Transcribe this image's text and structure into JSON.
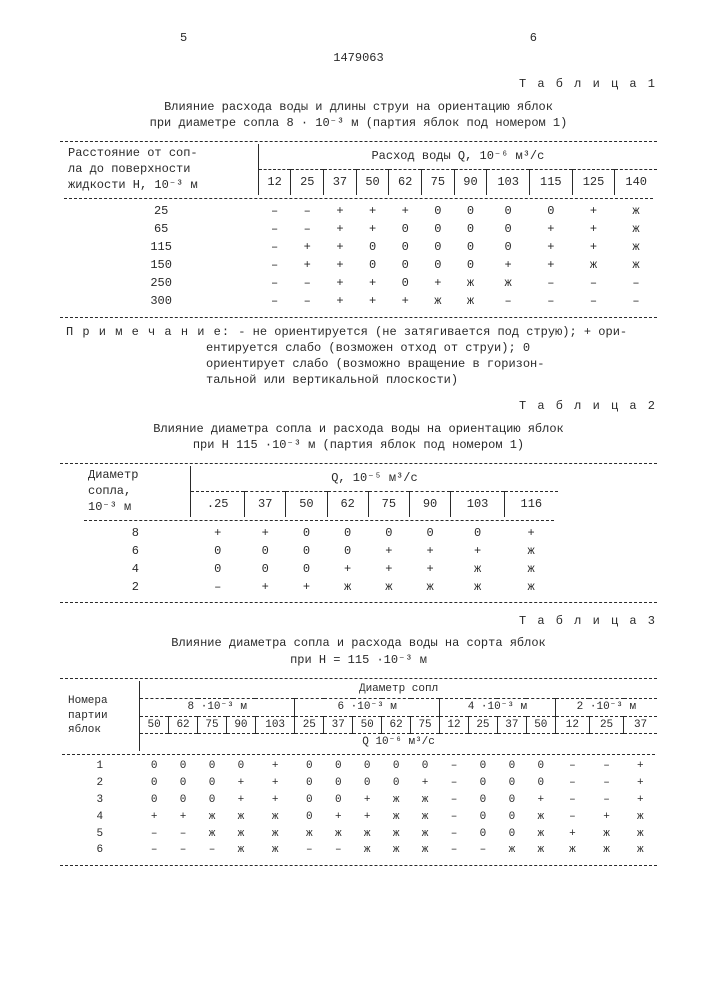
{
  "font_family": "Courier New",
  "text_color": "#2a2a2a",
  "background_color": "#ffffff",
  "page_num_left": "5",
  "page_num_right": "6",
  "doc_number": "1479063",
  "table1": {
    "label": "Т а б л и ц а  1",
    "caption_line1": "Влияние расхода воды и длины струи на ориентацию яблок",
    "caption_line2": "при диаметре сопла 8 · 10⁻³ м (партия яблок под номером 1)",
    "row_header_line1": "Расстояние от соп-",
    "row_header_line2": "ла до поверхности",
    "row_header_line3": "жидкости H, 10⁻³ м",
    "col_group_header": "Расход  воды Q,  10⁻⁶ м³/с",
    "cols": [
      "12",
      "25",
      "37",
      "50",
      "62",
      "75",
      "90",
      "103",
      "115",
      "125",
      "140"
    ],
    "rows": [
      {
        "h": "25",
        "v": [
          "–",
          "–",
          "+",
          "+",
          "+",
          "0",
          "0",
          "0",
          "0",
          "+",
          "ж"
        ]
      },
      {
        "h": "65",
        "v": [
          "–",
          "–",
          "+",
          "+",
          "0",
          "0",
          "0",
          "0",
          "+",
          "+",
          "ж"
        ]
      },
      {
        "h": "115",
        "v": [
          "–",
          "+",
          "+",
          "0",
          "0",
          "0",
          "0",
          "0",
          "+",
          "+",
          "ж"
        ]
      },
      {
        "h": "150",
        "v": [
          "–",
          "+",
          "+",
          "0",
          "0",
          "0",
          "0",
          "+",
          "+",
          "ж",
          "ж"
        ]
      },
      {
        "h": "250",
        "v": [
          "–",
          "–",
          "+",
          "+",
          "0",
          "+",
          "ж",
          "ж",
          "–",
          "–",
          "–"
        ]
      },
      {
        "h": "300",
        "v": [
          "–",
          "–",
          "+",
          "+",
          "+",
          "ж",
          "ж",
          "–",
          "–",
          "–",
          "–"
        ]
      }
    ]
  },
  "note_label": "П р и м е ч а н и е:",
  "note_body_l1": "- не ориентируется (не затягивается под струю); + ори-",
  "note_body_l2": "ентируется слабо (возможен отход от струи); 0",
  "note_body_l3": "ориентирует слабо (возможно вращение в горизон-",
  "note_body_l4": "тальной или вертикальной плоскости)",
  "table2": {
    "label": "Т а б л и ц а  2",
    "caption_line1": "Влияние диаметра сопла и расхода воды на ориентацию яблок",
    "caption_line2": "при H 115 ·10⁻³ м (партия яблок под номером 1)",
    "row_header_line1": "Диаметр",
    "row_header_line2": "сопла,",
    "row_header_line3": "10⁻³ м",
    "col_group_header": "Q,  10⁻⁵ м³/с",
    "cols": [
      ".25",
      "37",
      "50",
      "62",
      "75",
      "90",
      "103",
      "116"
    ],
    "rows": [
      {
        "h": "8",
        "v": [
          "+",
          "+",
          "0",
          "0",
          "0",
          "0",
          "0",
          "+"
        ]
      },
      {
        "h": "6",
        "v": [
          "0",
          "0",
          "0",
          "0",
          "+",
          "+",
          "+",
          "ж"
        ]
      },
      {
        "h": "4",
        "v": [
          "0",
          "0",
          "0",
          "+",
          "+",
          "+",
          "ж",
          "ж"
        ]
      },
      {
        "h": "2",
        "v": [
          "–",
          "+",
          "+",
          "ж",
          "ж",
          "ж",
          "ж",
          "ж"
        ]
      }
    ]
  },
  "table3": {
    "label": "Т а б л и ц а  3",
    "caption_line1": "Влияние диаметра сопла и расхода воды на сорта яблок",
    "caption_line2": "при H = 115 ·10⁻³ м",
    "row_header_line1": "Номера",
    "row_header_line2": "партии",
    "row_header_line3": "яблок",
    "col_group_header": "Диаметр сопл",
    "q_header": "Q   10⁻⁶ м³/с",
    "groups": [
      {
        "label": "8  ·10⁻³ м",
        "cols": [
          "50",
          "62",
          "75",
          "90",
          "103"
        ]
      },
      {
        "label": "6 ·10⁻³ м",
        "cols": [
          "25",
          "37",
          "50",
          "62",
          "75"
        ]
      },
      {
        "label": "4 ·10⁻³ м",
        "cols": [
          "12",
          "25",
          "37",
          "50"
        ]
      },
      {
        "label": "2 ·10⁻³ м",
        "cols": [
          "12",
          "25",
          "37"
        ]
      }
    ],
    "rows": [
      {
        "h": "1",
        "v": [
          "0",
          "0",
          "0",
          "0",
          "+",
          "0",
          "0",
          "0",
          "0",
          "0",
          "–",
          "0",
          "0",
          "0",
          "–",
          "–",
          "+"
        ]
      },
      {
        "h": "2",
        "v": [
          "0",
          "0",
          "0",
          "+",
          "+",
          "0",
          "0",
          "0",
          "0",
          "+",
          "–",
          "0",
          "0",
          "0",
          "–",
          "–",
          "+"
        ]
      },
      {
        "h": "3",
        "v": [
          "0",
          "0",
          "0",
          "+",
          "+",
          "0",
          "0",
          "+",
          "ж",
          "ж",
          "–",
          "0",
          "0",
          "+",
          "–",
          "–",
          "+"
        ]
      },
      {
        "h": "4",
        "v": [
          "+",
          "+",
          "ж",
          "ж",
          "ж",
          "0",
          "+",
          "+",
          "ж",
          "ж",
          "–",
          "0",
          "0",
          "ж",
          "–",
          "+",
          "ж"
        ]
      },
      {
        "h": "5",
        "v": [
          "–",
          "–",
          "ж",
          "ж",
          "ж",
          "ж",
          "ж",
          "ж",
          "ж",
          "ж",
          "–",
          "0",
          "0",
          "ж",
          "+",
          "ж",
          "ж"
        ]
      },
      {
        "h": "6",
        "v": [
          "–",
          "–",
          "–",
          "ж",
          "ж",
          "–",
          "–",
          "ж",
          "ж",
          "ж",
          "–",
          "–",
          "ж",
          "ж",
          "ж",
          "ж",
          "ж"
        ]
      }
    ]
  }
}
